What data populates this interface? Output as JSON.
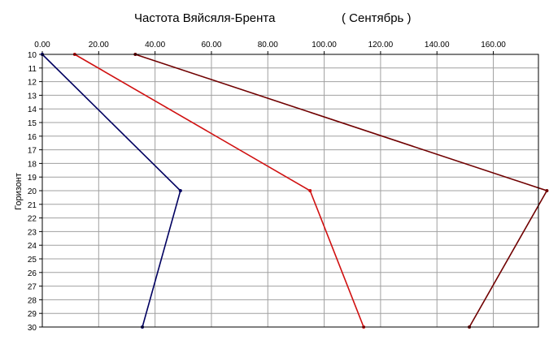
{
  "chart_data": {
    "type": "line",
    "title": "Частота Вяйсяля-Брента",
    "subtitle": "( Сентябрь )",
    "xlabel": "",
    "ylabel": "Горизонт",
    "xlim": [
      0,
      176
    ],
    "ylim": [
      10,
      30
    ],
    "y_reversed": true,
    "x_axis_position": "top",
    "grid": true,
    "x_ticks": [
      "0.00",
      "20.00",
      "40.00",
      "60.00",
      "80.00",
      "100.00",
      "120.00",
      "140.00",
      "160.00"
    ],
    "y_ticks": [
      "10",
      "11",
      "12",
      "13",
      "14",
      "15",
      "16",
      "17",
      "18",
      "19",
      "20",
      "21",
      "22",
      "23",
      "24",
      "25",
      "26",
      "27",
      "28",
      "29",
      "30"
    ],
    "series": [
      {
        "color": "#000060",
        "points": [
          [
            0,
            10
          ],
          [
            49,
            20
          ],
          [
            35.5,
            30
          ]
        ]
      },
      {
        "color": "#d01010",
        "points": [
          [
            11.5,
            10
          ],
          [
            95,
            20
          ],
          [
            114,
            30
          ]
        ]
      },
      {
        "color": "#700000",
        "points": [
          [
            33,
            10
          ],
          [
            179,
            20
          ],
          [
            151.5,
            30
          ]
        ]
      }
    ]
  }
}
